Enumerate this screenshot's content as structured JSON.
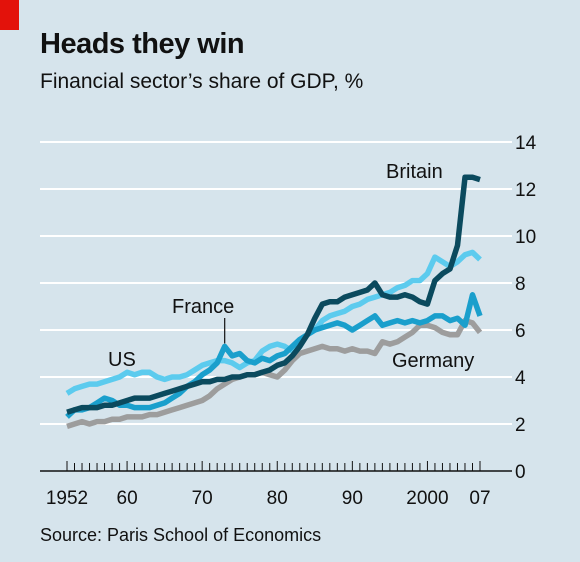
{
  "header": {
    "title": "Heads they win",
    "subtitle": "Financial sector’s share of GDP, %"
  },
  "footer": {
    "source": "Source: Paris School of Economics"
  },
  "colors": {
    "background": "#d6e4ec",
    "accent": "#e3120b",
    "Britain": "#0b4a5e",
    "US": "#5ccbee",
    "France": "#1a9fcc",
    "Germany": "#9d9d9d"
  },
  "chart_data": {
    "type": "line",
    "title": "Heads they win",
    "subtitle": "Financial sector’s share of GDP, %",
    "ylim": [
      0,
      14
    ],
    "xlim": [
      1952,
      2007
    ],
    "y_ticks": [
      0,
      2,
      4,
      6,
      8,
      10,
      12,
      14
    ],
    "x_tick_labels": [
      {
        "year": 1952,
        "label": "1952"
      },
      {
        "year": 1960,
        "label": "60"
      },
      {
        "year": 1970,
        "label": "70"
      },
      {
        "year": 1980,
        "label": "80"
      },
      {
        "year": 1990,
        "label": "90"
      },
      {
        "year": 2000,
        "label": "2000"
      },
      {
        "year": 2007,
        "label": "07"
      }
    ],
    "y_axis_side": "right",
    "grid": true,
    "x": [
      1952,
      1953,
      1954,
      1955,
      1956,
      1957,
      1958,
      1959,
      1960,
      1961,
      1962,
      1963,
      1964,
      1965,
      1966,
      1967,
      1968,
      1969,
      1970,
      1971,
      1972,
      1973,
      1974,
      1975,
      1976,
      1977,
      1978,
      1979,
      1980,
      1981,
      1982,
      1983,
      1984,
      1985,
      1986,
      1987,
      1988,
      1989,
      1990,
      1991,
      1992,
      1993,
      1994,
      1995,
      1996,
      1997,
      1998,
      1999,
      2000,
      2001,
      2002,
      2003,
      2004,
      2005,
      2006,
      2007
    ],
    "series": [
      {
        "name": "US",
        "values": [
          3.3,
          3.5,
          3.6,
          3.7,
          3.7,
          3.8,
          3.9,
          4.0,
          4.2,
          4.1,
          4.2,
          4.2,
          4.0,
          3.9,
          4.0,
          4.0,
          4.1,
          4.3,
          4.5,
          4.6,
          4.7,
          4.7,
          4.6,
          4.4,
          4.6,
          4.7,
          5.1,
          5.3,
          5.4,
          5.3,
          5.1,
          5.4,
          5.8,
          6.0,
          6.4,
          6.6,
          6.7,
          6.8,
          7.0,
          7.1,
          7.3,
          7.4,
          7.5,
          7.6,
          7.8,
          7.9,
          8.1,
          8.1,
          8.4,
          9.1,
          8.9,
          8.7,
          8.9,
          9.2,
          9.3,
          9.0
        ]
      },
      {
        "name": "France",
        "values": [
          2.3,
          2.6,
          2.6,
          2.7,
          2.9,
          3.1,
          3.0,
          2.8,
          2.8,
          2.7,
          2.7,
          2.7,
          2.8,
          2.9,
          3.1,
          3.3,
          3.6,
          3.8,
          4.1,
          4.3,
          4.6,
          5.3,
          4.9,
          5.0,
          4.7,
          4.6,
          4.8,
          4.7,
          4.9,
          5.0,
          5.3,
          5.6,
          5.8,
          6.0,
          6.1,
          6.2,
          6.3,
          6.2,
          6.0,
          6.2,
          6.4,
          6.6,
          6.2,
          6.3,
          6.4,
          6.3,
          6.4,
          6.3,
          6.4,
          6.6,
          6.6,
          6.4,
          6.5,
          6.2,
          7.5,
          6.6
        ]
      },
      {
        "name": "Britain",
        "values": [
          2.5,
          2.6,
          2.7,
          2.7,
          2.7,
          2.8,
          2.8,
          2.9,
          3.0,
          3.1,
          3.1,
          3.1,
          3.2,
          3.3,
          3.4,
          3.5,
          3.6,
          3.7,
          3.8,
          3.8,
          3.9,
          3.9,
          4.0,
          4.0,
          4.1,
          4.1,
          4.2,
          4.3,
          4.5,
          4.6,
          4.9,
          5.3,
          5.8,
          6.5,
          7.1,
          7.2,
          7.2,
          7.4,
          7.5,
          7.6,
          7.7,
          8.0,
          7.5,
          7.4,
          7.4,
          7.5,
          7.4,
          7.2,
          7.1,
          8.1,
          8.4,
          8.6,
          9.6,
          12.5,
          12.5,
          12.4
        ]
      },
      {
        "name": "Germany",
        "values": [
          1.9,
          2.0,
          2.1,
          2.0,
          2.1,
          2.1,
          2.2,
          2.2,
          2.3,
          2.3,
          2.3,
          2.4,
          2.4,
          2.5,
          2.6,
          2.7,
          2.8,
          2.9,
          3.0,
          3.2,
          3.5,
          3.7,
          3.9,
          4.0,
          4.1,
          4.1,
          4.2,
          4.1,
          4.0,
          4.3,
          4.7,
          5.0,
          5.1,
          5.2,
          5.3,
          5.2,
          5.2,
          5.1,
          5.2,
          5.1,
          5.1,
          5.0,
          5.5,
          5.4,
          5.5,
          5.7,
          5.9,
          6.2,
          6.2,
          6.1,
          5.9,
          5.8,
          5.8,
          6.4,
          6.3,
          5.9
        ]
      }
    ],
    "annotations": [
      {
        "label": "US",
        "series": "US"
      },
      {
        "label": "France",
        "series": "France"
      },
      {
        "label": "Britain",
        "series": "Britain"
      },
      {
        "label": "Germany",
        "series": "Germany"
      }
    ]
  }
}
